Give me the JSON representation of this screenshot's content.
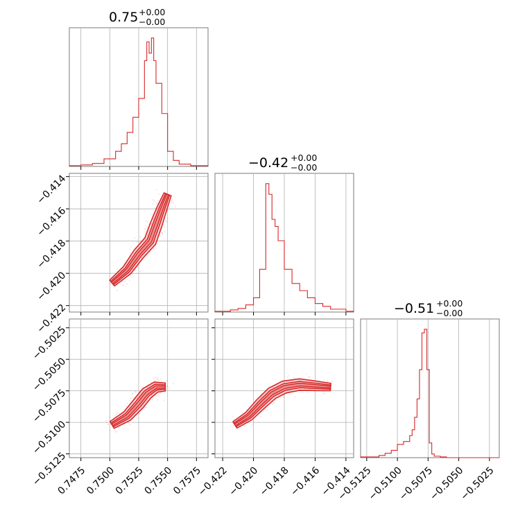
{
  "colors": {
    "accent": "#d62728",
    "fill": "#f4b6b6",
    "grid": "#b0b0b0",
    "frame": "#7a7a7a"
  },
  "chart_data": [
    {
      "type": "histogram",
      "panel": "0-0",
      "title": {
        "value": "0.75",
        "plus": "+0.00",
        "minus": "−0.00"
      },
      "xlim": [
        0.7465,
        0.7585
      ],
      "xticks": [
        0.7475,
        0.75,
        0.7525,
        0.755,
        0.7575
      ],
      "bin_edges": [
        0.7465,
        0.7475,
        0.7485,
        0.7495,
        0.7505,
        0.751,
        0.7515,
        0.752,
        0.7525,
        0.753,
        0.7532,
        0.7534,
        0.7536,
        0.7538,
        0.754,
        0.7545,
        0.755,
        0.7555,
        0.756,
        0.757,
        0.7585
      ],
      "counts": [
        1,
        2,
        4,
        10,
        20,
        30,
        45,
        65,
        90,
        140,
        165,
        150,
        170,
        140,
        110,
        70,
        20,
        8,
        3,
        1
      ]
    },
    {
      "type": "scatter-contour",
      "panel": "1-0",
      "xlim": [
        0.7465,
        0.7585
      ],
      "ylim": [
        -0.4224,
        -0.4138
      ],
      "yticks": [
        -0.414,
        -0.416,
        -0.418,
        -0.42,
        -0.422
      ],
      "ytick_labels": [
        "−0.414",
        "−0.416",
        "−0.418",
        "−0.420",
        "−0.422"
      ],
      "ridge": [
        [
          0.7502,
          -0.4206
        ],
        [
          0.7515,
          -0.4198
        ],
        [
          0.7525,
          -0.4188
        ],
        [
          0.7535,
          -0.418
        ],
        [
          0.754,
          -0.417
        ],
        [
          0.7545,
          -0.416
        ],
        [
          0.755,
          -0.4151
        ]
      ]
    },
    {
      "type": "histogram",
      "panel": "1-1",
      "title": {
        "value": "−0.42",
        "plus": "+0.00",
        "minus": "−0.00"
      },
      "xlim": [
        -0.4225,
        -0.4135
      ],
      "bin_edges": [
        -0.4225,
        -0.4215,
        -0.421,
        -0.4205,
        -0.42,
        -0.4196,
        -0.4192,
        -0.419,
        -0.4188,
        -0.4186,
        -0.4184,
        -0.418,
        -0.4175,
        -0.417,
        -0.4165,
        -0.416,
        -0.4155,
        -0.415,
        -0.414,
        -0.4135
      ],
      "counts": [
        1,
        3,
        5,
        10,
        20,
        60,
        180,
        165,
        130,
        120,
        100,
        60,
        40,
        30,
        20,
        12,
        8,
        4,
        1
      ]
    },
    {
      "type": "scatter-contour",
      "panel": "2-0",
      "xlim": [
        0.7465,
        0.7585
      ],
      "ylim": [
        -0.5128,
        -0.5018
      ],
      "xticks": [
        0.7475,
        0.75,
        0.7525,
        0.755,
        0.7575
      ],
      "xtick_labels": [
        "0.7475",
        "0.7500",
        "0.7525",
        "0.7550",
        "0.7575"
      ],
      "yticks": [
        -0.5025,
        -0.505,
        -0.5075,
        -0.51,
        -0.5125
      ],
      "ytick_labels": [
        "−0.5025",
        "−0.5050",
        "−0.5075",
        "−0.5100",
        "−0.5125"
      ],
      "ridge": [
        [
          0.7502,
          -0.5102
        ],
        [
          0.7515,
          -0.5095
        ],
        [
          0.7525,
          -0.5085
        ],
        [
          0.7532,
          -0.5077
        ],
        [
          0.754,
          -0.5072
        ],
        [
          0.7548,
          -0.5072
        ]
      ]
    },
    {
      "type": "scatter-contour",
      "panel": "2-1",
      "xlim": [
        -0.4225,
        -0.4135
      ],
      "ylim": [
        -0.5128,
        -0.5018
      ],
      "xticks": [
        -0.422,
        -0.42,
        -0.418,
        -0.416,
        -0.414
      ],
      "xtick_labels": [
        "−0.422",
        "−0.420",
        "−0.418",
        "−0.416",
        "−0.414"
      ],
      "ridge": [
        [
          -0.4212,
          -0.5102
        ],
        [
          -0.4203,
          -0.5095
        ],
        [
          -0.4195,
          -0.5085
        ],
        [
          -0.4188,
          -0.5077
        ],
        [
          -0.418,
          -0.5072
        ],
        [
          -0.417,
          -0.507
        ],
        [
          -0.416,
          -0.5071
        ],
        [
          -0.415,
          -0.5072
        ]
      ]
    },
    {
      "type": "histogram",
      "panel": "2-2",
      "title": {
        "value": "−0.51",
        "plus": "+0.00",
        "minus": "−0.00"
      },
      "xlim": [
        -0.513,
        -0.5017
      ],
      "xticks": [
        -0.5125,
        -0.51,
        -0.5075,
        -0.505,
        -0.5025
      ],
      "xtick_labels": [
        "−0.5125",
        "−0.5100",
        "−0.5075",
        "−0.5050",
        "−0.5025"
      ],
      "bin_edges": [
        -0.513,
        -0.5115,
        -0.511,
        -0.5105,
        -0.51,
        -0.5095,
        -0.509,
        -0.5088,
        -0.5086,
        -0.5084,
        -0.5082,
        -0.508,
        -0.5078,
        -0.5076,
        -0.5074,
        -0.5072,
        -0.507,
        -0.5065,
        -0.506,
        -0.5017
      ],
      "counts": [
        1,
        3,
        6,
        10,
        18,
        22,
        30,
        38,
        55,
        80,
        120,
        170,
        175,
        120,
        20,
        5,
        2,
        1,
        0
      ]
    }
  ]
}
